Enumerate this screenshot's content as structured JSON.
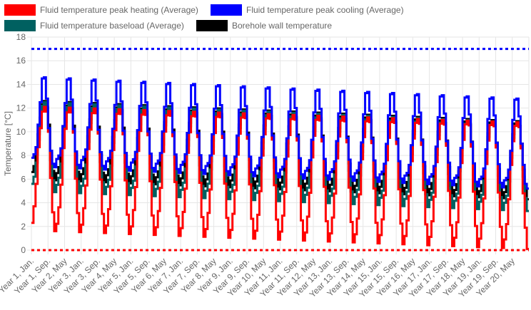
{
  "chart_data": {
    "type": "line",
    "ylabel": "Temperature [°C]",
    "xlabel": "",
    "ylim": [
      0,
      18
    ],
    "y_ticks": [
      "0",
      "2",
      "4",
      "6",
      "8",
      "10",
      "12",
      "14",
      "16",
      "18"
    ],
    "grid": true,
    "legend_position": "top",
    "step_interpolation": true,
    "months_per_year": 12,
    "years": 20,
    "x_tick_labels": [
      "Year 1, Jan.",
      "Year 1, Sep.",
      "Year 2, May",
      "Year 3, Jan.",
      "Year 3, Sep.",
      "Year 4, May",
      "Year 5, Jan.",
      "Year 5, Sep.",
      "Year 6, May",
      "Year 7, Jan.",
      "Year 7, Sep.",
      "Year 8, May",
      "Year 9, Jan.",
      "Year 9, Sep.",
      "Year 10, May",
      "Year 11, Jan.",
      "Year 11, Sep.",
      "Year 12, May",
      "Year 13, Jan.",
      "Year 13, Sep.",
      "Year 14, May",
      "Year 15, Jan.",
      "Year 15, Sep.",
      "Year 16, May",
      "Year 17, Jan.",
      "Year 17, Sep.",
      "Year 18, May",
      "Year 19, Jan.",
      "Year 19, Sep.",
      "Year 20, May"
    ],
    "x_tick_every_months": 8,
    "series": [
      {
        "name": "Fluid temperature peak heating (Average)",
        "color": "#ff0000",
        "year1_monthly": [
          2.3,
          3.7,
          5.6,
          8.7,
          10.3,
          11.7,
          12.1,
          11.7,
          10.0,
          6.1,
          3.2,
          1.6
        ],
        "year20_monthly": [
          0.9,
          2.2,
          4.3,
          7.2,
          9.2,
          10.5,
          10.8,
          10.4,
          8.6,
          4.8,
          1.9,
          0.1
        ],
        "dashed_constant": null
      },
      {
        "name": "Fluid temperature peak cooling (Average)",
        "color": "#0000ff",
        "year1_monthly": [
          7.8,
          8.1,
          8.7,
          10.6,
          12.5,
          14.5,
          14.6,
          12.8,
          10.3,
          8.4,
          7.3,
          7.0
        ],
        "year20_monthly": [
          5.9,
          6.1,
          6.8,
          8.4,
          11.0,
          12.7,
          12.8,
          11.3,
          9.0,
          7.2,
          5.6,
          5.2
        ],
        "dashed_constant": null
      },
      {
        "name": "Fluid temperature baseload (Average)",
        "color": "#006060",
        "year1_monthly": [
          5.6,
          6.2,
          7.4,
          9.3,
          10.9,
          12.2,
          12.5,
          12.0,
          10.3,
          7.6,
          5.9,
          4.9
        ],
        "year20_monthly": [
          4.0,
          4.6,
          5.8,
          7.8,
          9.5,
          10.5,
          10.8,
          10.4,
          8.8,
          6.2,
          4.4,
          3.3
        ],
        "dashed_constant": null
      },
      {
        "name": "Borehole wall temperature",
        "color": "#000000",
        "year1_monthly": [
          6.6,
          7.1,
          8.1,
          9.8,
          11.2,
          12.3,
          12.6,
          12.1,
          10.6,
          8.2,
          6.7,
          5.9
        ],
        "year20_monthly": [
          4.9,
          5.4,
          6.5,
          8.3,
          9.8,
          10.7,
          10.9,
          10.5,
          9.0,
          6.8,
          5.2,
          4.3
        ],
        "dashed_constant": null
      }
    ],
    "limit_lines": [
      {
        "label": "",
        "value": 17,
        "color": "#0000ff"
      },
      {
        "label": "",
        "value": 0,
        "color": "#ff0000"
      }
    ]
  }
}
